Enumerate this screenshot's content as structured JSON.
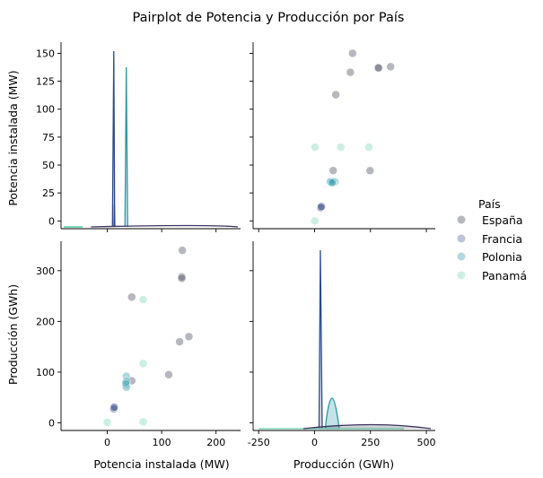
{
  "figure": {
    "title": "Pairplot de Potencia y Producción por País"
  },
  "legend": {
    "title": "País",
    "placement": "right",
    "entries": [
      {
        "label": "España",
        "color": "#4b4a60"
      },
      {
        "label": "Francia",
        "color": "#5d6b9a"
      },
      {
        "label": "Polonia",
        "color": "#3aa0b0"
      },
      {
        "label": "Panamá",
        "color": "#7fd8bc"
      }
    ]
  },
  "chart_data": {
    "type": "pairplot",
    "title": "Pairplot de Potencia y Producción por País",
    "variables": [
      "Potencia instalada (MW)",
      "Producción (GWh)"
    ],
    "ylabels": [
      "Potencia instalada (MW)",
      "Producción (GWh)"
    ],
    "xlabels": [
      "Potencia instalada (MW)",
      "Producción (GWh)"
    ],
    "potencia_axis": {
      "lim": [
        -85,
        245
      ],
      "ticks": [
        0,
        100,
        200
      ],
      "ylim": [
        -7,
        160
      ],
      "yticks": [
        0,
        25,
        50,
        75,
        100,
        125,
        150
      ]
    },
    "produccion_axis": {
      "lim": [
        -275,
        540
      ],
      "ticks": [
        -250,
        0,
        250,
        500
      ],
      "ylim": [
        -15,
        358
      ],
      "yticks": [
        0,
        100,
        200,
        300
      ]
    },
    "series": [
      {
        "name": "España",
        "color": "#4b4a60",
        "points": [
          [
            150,
            170
          ],
          [
            138,
            340
          ],
          [
            137,
            288
          ],
          [
            137,
            285
          ],
          [
            133,
            160
          ],
          [
            113,
            95
          ],
          [
            45,
            248
          ],
          [
            45,
            83
          ],
          [
            12,
            30
          ]
        ]
      },
      {
        "name": "Francia",
        "color": "#5d6b9a",
        "points": [
          [
            12,
            27
          ],
          [
            12,
            30
          ],
          [
            12,
            28
          ],
          [
            13,
            31
          ]
        ]
      },
      {
        "name": "Polonia",
        "color": "#3aa0b0",
        "points": [
          [
            35,
            92
          ],
          [
            35,
            75
          ],
          [
            35,
            70
          ],
          [
            35,
            82
          ],
          [
            34,
            78
          ]
        ]
      },
      {
        "name": "Panamá",
        "color": "#7fd8bc",
        "points": [
          [
            66,
            243
          ],
          [
            66,
            117
          ],
          [
            66,
            2
          ],
          [
            0,
            1
          ]
        ]
      }
    ]
  }
}
